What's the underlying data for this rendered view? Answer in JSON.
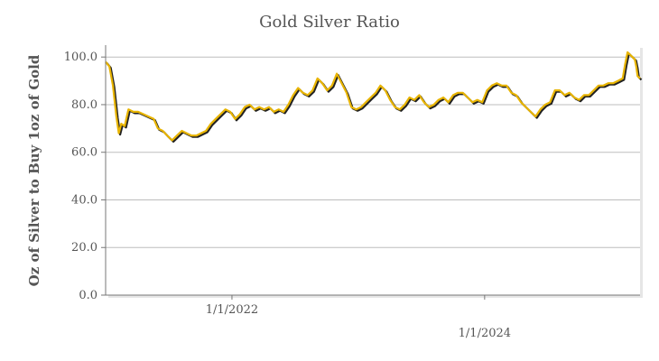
{
  "chart_data": {
    "type": "line",
    "title": "Gold Silver Ratio",
    "ylabel": "Oz of Silver to Buy 1oz of Gold",
    "xlabel": "",
    "xlim": [
      "2021-01-01",
      "2025-03-25"
    ],
    "ylim": [
      0,
      105
    ],
    "y_ticks": [
      {
        "value": 0,
        "label": "0.0"
      },
      {
        "value": 20,
        "label": "20.0"
      },
      {
        "value": 40,
        "label": "40.0"
      },
      {
        "value": 60,
        "label": "60.0"
      },
      {
        "value": 80,
        "label": "80.0"
      },
      {
        "value": 100,
        "label": "100.0"
      }
    ],
    "x_ticks": [
      {
        "date": "2022-01-01",
        "label": "1/1/2022",
        "row": "upper"
      },
      {
        "date": "2024-01-01",
        "label": "1/1/2024",
        "row": "lower"
      }
    ],
    "grid": true,
    "series": [
      {
        "color": "#e8b400",
        "shadow_color": "#222222",
        "points": [
          [
            "2021-01-01",
            98
          ],
          [
            "2021-01-12",
            96
          ],
          [
            "2021-01-22",
            88
          ],
          [
            "2021-02-01",
            75
          ],
          [
            "2021-02-08",
            68
          ],
          [
            "2021-02-15",
            72
          ],
          [
            "2021-02-25",
            71
          ],
          [
            "2021-03-08",
            78
          ],
          [
            "2021-03-22",
            77
          ],
          [
            "2021-04-05",
            77
          ],
          [
            "2021-04-20",
            76
          ],
          [
            "2021-05-05",
            75
          ],
          [
            "2021-05-20",
            74
          ],
          [
            "2021-06-01",
            70
          ],
          [
            "2021-06-15",
            69
          ],
          [
            "2021-06-28",
            67
          ],
          [
            "2021-07-12",
            65
          ],
          [
            "2021-07-26",
            67
          ],
          [
            "2021-08-09",
            69
          ],
          [
            "2021-08-23",
            68
          ],
          [
            "2021-09-06",
            67
          ],
          [
            "2021-09-20",
            67
          ],
          [
            "2021-10-04",
            68
          ],
          [
            "2021-10-18",
            69
          ],
          [
            "2021-11-01",
            72
          ],
          [
            "2021-11-15",
            74
          ],
          [
            "2021-11-29",
            76
          ],
          [
            "2021-12-13",
            78
          ],
          [
            "2021-12-27",
            77
          ],
          [
            "2022-01-10",
            74
          ],
          [
            "2022-01-24",
            76
          ],
          [
            "2022-02-07",
            79
          ],
          [
            "2022-02-21",
            80
          ],
          [
            "2022-03-07",
            78
          ],
          [
            "2022-03-21",
            79
          ],
          [
            "2022-04-04",
            78
          ],
          [
            "2022-04-18",
            79
          ],
          [
            "2022-05-02",
            77
          ],
          [
            "2022-05-16",
            78
          ],
          [
            "2022-05-30",
            77
          ],
          [
            "2022-06-13",
            80
          ],
          [
            "2022-06-27",
            84
          ],
          [
            "2022-07-11",
            87
          ],
          [
            "2022-07-25",
            85
          ],
          [
            "2022-08-08",
            84
          ],
          [
            "2022-08-22",
            86
          ],
          [
            "2022-09-05",
            91
          ],
          [
            "2022-09-19",
            89
          ],
          [
            "2022-10-03",
            86
          ],
          [
            "2022-10-17",
            88
          ],
          [
            "2022-10-31",
            93
          ],
          [
            "2022-11-14",
            89
          ],
          [
            "2022-11-28",
            85
          ],
          [
            "2022-12-12",
            79
          ],
          [
            "2022-12-26",
            78
          ],
          [
            "2023-01-09",
            79
          ],
          [
            "2023-01-23",
            81
          ],
          [
            "2023-02-06",
            83
          ],
          [
            "2023-02-20",
            85
          ],
          [
            "2023-03-06",
            88
          ],
          [
            "2023-03-20",
            86
          ],
          [
            "2023-04-03",
            82
          ],
          [
            "2023-04-17",
            79
          ],
          [
            "2023-05-01",
            78
          ],
          [
            "2023-05-15",
            80
          ],
          [
            "2023-05-29",
            83
          ],
          [
            "2023-06-12",
            82
          ],
          [
            "2023-06-26",
            84
          ],
          [
            "2023-07-10",
            81
          ],
          [
            "2023-07-24",
            79
          ],
          [
            "2023-08-07",
            80
          ],
          [
            "2023-08-21",
            82
          ],
          [
            "2023-09-04",
            83
          ],
          [
            "2023-09-18",
            81
          ],
          [
            "2023-10-02",
            84
          ],
          [
            "2023-10-16",
            85
          ],
          [
            "2023-10-30",
            85
          ],
          [
            "2023-11-13",
            83
          ],
          [
            "2023-11-27",
            81
          ],
          [
            "2023-12-11",
            82
          ],
          [
            "2023-12-25",
            81
          ],
          [
            "2024-01-08",
            86
          ],
          [
            "2024-01-22",
            88
          ],
          [
            "2024-02-05",
            89
          ],
          [
            "2024-02-19",
            88
          ],
          [
            "2024-03-04",
            88
          ],
          [
            "2024-03-18",
            85
          ],
          [
            "2024-04-01",
            84
          ],
          [
            "2024-04-15",
            81
          ],
          [
            "2024-04-29",
            79
          ],
          [
            "2024-05-13",
            77
          ],
          [
            "2024-05-27",
            75
          ],
          [
            "2024-06-10",
            78
          ],
          [
            "2024-06-24",
            80
          ],
          [
            "2024-07-08",
            81
          ],
          [
            "2024-07-22",
            86
          ],
          [
            "2024-08-05",
            86
          ],
          [
            "2024-08-19",
            84
          ],
          [
            "2024-09-02",
            85
          ],
          [
            "2024-09-16",
            83
          ],
          [
            "2024-09-30",
            82
          ],
          [
            "2024-10-14",
            84
          ],
          [
            "2024-10-28",
            84
          ],
          [
            "2024-11-11",
            86
          ],
          [
            "2024-11-25",
            88
          ],
          [
            "2024-12-09",
            88
          ],
          [
            "2024-12-23",
            89
          ],
          [
            "2025-01-06",
            89
          ],
          [
            "2025-01-20",
            90
          ],
          [
            "2025-02-03",
            91
          ],
          [
            "2025-02-10",
            97
          ],
          [
            "2025-02-17",
            102
          ],
          [
            "2025-02-24",
            101
          ],
          [
            "2025-03-03",
            100
          ],
          [
            "2025-03-10",
            99
          ],
          [
            "2025-03-14",
            96
          ],
          [
            "2025-03-18",
            92
          ],
          [
            "2025-03-25",
            91
          ]
        ]
      }
    ]
  }
}
